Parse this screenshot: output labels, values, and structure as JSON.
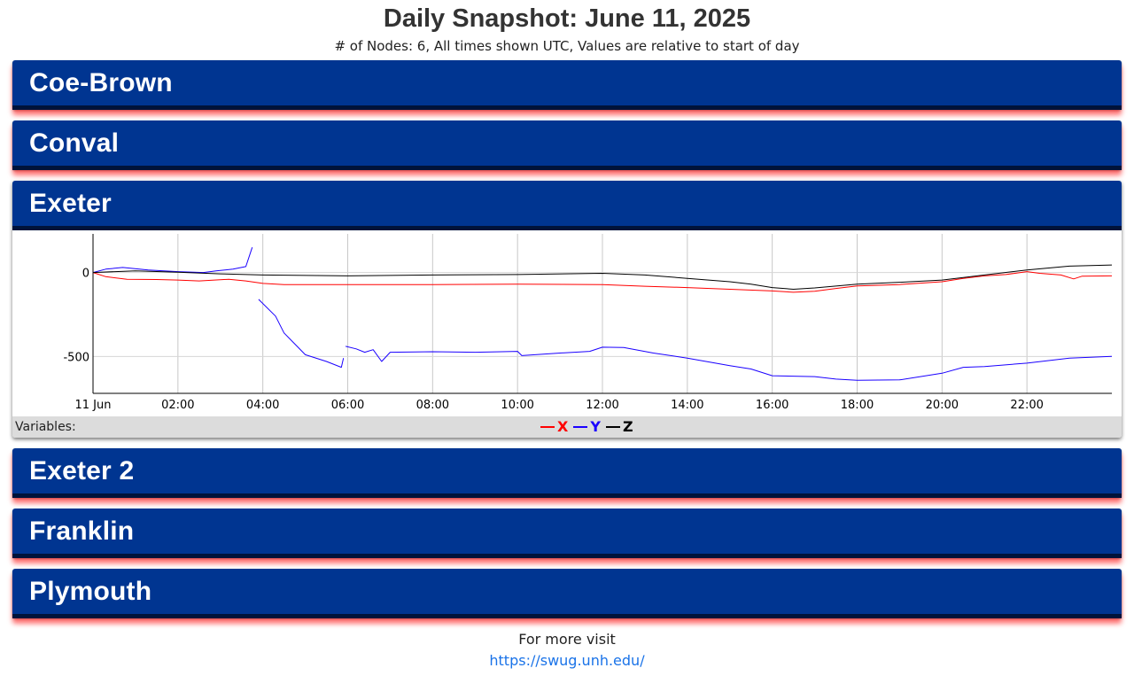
{
  "page": {
    "title": "Daily Snapshot: June 11, 2025",
    "subtitle": "# of Nodes: 6, All times shown UTC, Values are relative to start of day"
  },
  "panels": [
    {
      "label": "Coe-Brown",
      "open": false
    },
    {
      "label": "Conval",
      "open": false
    },
    {
      "label": "Exeter",
      "open": true
    },
    {
      "label": "Exeter 2",
      "open": false
    },
    {
      "label": "Franklin",
      "open": false
    },
    {
      "label": "Plymouth",
      "open": false
    }
  ],
  "variables": {
    "label": "Variables:",
    "items": [
      {
        "name": "X",
        "color": "#ff0000"
      },
      {
        "name": "Y",
        "color": "#1a00ff"
      },
      {
        "name": "Z",
        "color": "#000000"
      }
    ]
  },
  "footer": {
    "text": "For more visit",
    "link_text": "https://swug.unh.edu/"
  },
  "colors": {
    "header_bg": "#003591",
    "header_border": "#00133a",
    "panel_shadow": "#ff0000",
    "link": "#1a73e8"
  },
  "chart_data": {
    "type": "line",
    "x_unit": "hours UTC",
    "xlim": [
      0,
      24
    ],
    "ylim": [
      -720,
      230
    ],
    "x_ticks": [
      {
        "x": 0,
        "label": "11 Jun"
      },
      {
        "x": 2,
        "label": "02:00"
      },
      {
        "x": 4,
        "label": "04:00"
      },
      {
        "x": 6,
        "label": "06:00"
      },
      {
        "x": 8,
        "label": "08:00"
      },
      {
        "x": 10,
        "label": "10:00"
      },
      {
        "x": 12,
        "label": "12:00"
      },
      {
        "x": 14,
        "label": "14:00"
      },
      {
        "x": 16,
        "label": "16:00"
      },
      {
        "x": 18,
        "label": "18:00"
      },
      {
        "x": 20,
        "label": "20:00"
      },
      {
        "x": 22,
        "label": "22:00"
      }
    ],
    "y_ticks": [
      {
        "y": 0,
        "label": "0"
      },
      {
        "y": -500,
        "label": "-500"
      }
    ],
    "grid": true,
    "series": [
      {
        "name": "X",
        "color": "#ff0000",
        "segments": [
          [
            [
              0,
              0
            ],
            [
              0.3,
              -25
            ],
            [
              0.8,
              -40
            ],
            [
              1.5,
              -42
            ],
            [
              2.0,
              -45
            ],
            [
              2.5,
              -50
            ],
            [
              3.2,
              -40
            ],
            [
              3.6,
              -50
            ],
            [
              4.0,
              -65
            ],
            [
              4.5,
              -72
            ],
            [
              6,
              -72
            ],
            [
              8,
              -72
            ],
            [
              10,
              -70
            ],
            [
              12,
              -72
            ],
            [
              13,
              -82
            ],
            [
              14,
              -90
            ],
            [
              15,
              -100
            ],
            [
              16,
              -110
            ],
            [
              16.5,
              -118
            ],
            [
              17.0,
              -112
            ],
            [
              17.5,
              -95
            ],
            [
              18,
              -80
            ],
            [
              19,
              -72
            ],
            [
              20,
              -55
            ],
            [
              20.5,
              -35
            ],
            [
              21,
              -20
            ],
            [
              21.5,
              -12
            ],
            [
              22,
              5
            ],
            [
              22.3,
              -5
            ],
            [
              22.8,
              -15
            ],
            [
              23.1,
              -38
            ],
            [
              23.3,
              -22
            ],
            [
              24,
              -20
            ]
          ]
        ]
      },
      {
        "name": "Y",
        "color": "#1a00ff",
        "segments": [
          [
            [
              0,
              0
            ],
            [
              0.3,
              20
            ],
            [
              0.7,
              30
            ],
            [
              1.3,
              15
            ],
            [
              2.0,
              5
            ],
            [
              2.6,
              0
            ],
            [
              2.9,
              10
            ],
            [
              3.3,
              20
            ],
            [
              3.6,
              35
            ],
            [
              3.75,
              150
            ]
          ],
          [
            [
              3.9,
              -160
            ],
            [
              4.3,
              -260
            ],
            [
              4.5,
              -360
            ],
            [
              5.0,
              -490
            ],
            [
              5.5,
              -530
            ],
            [
              5.85,
              -565
            ],
            [
              5.9,
              -510
            ]
          ],
          [
            [
              5.95,
              -440
            ],
            [
              6.2,
              -455
            ],
            [
              6.4,
              -475
            ],
            [
              6.6,
              -460
            ],
            [
              6.8,
              -530
            ],
            [
              7.0,
              -475
            ],
            [
              8,
              -472
            ],
            [
              9,
              -475
            ],
            [
              10,
              -470
            ],
            [
              10.1,
              -495
            ],
            [
              11,
              -480
            ],
            [
              11.7,
              -470
            ],
            [
              12,
              -445
            ],
            [
              12.5,
              -447
            ],
            [
              13.2,
              -480
            ],
            [
              14,
              -510
            ],
            [
              15,
              -555
            ],
            [
              15.5,
              -575
            ],
            [
              16,
              -615
            ],
            [
              17,
              -620
            ],
            [
              17.5,
              -635
            ],
            [
              18,
              -642
            ],
            [
              19,
              -640
            ],
            [
              20,
              -600
            ],
            [
              20.5,
              -565
            ],
            [
              21,
              -560
            ],
            [
              22,
              -540
            ],
            [
              23,
              -510
            ],
            [
              24,
              -500
            ]
          ]
        ]
      },
      {
        "name": "Z",
        "color": "#000000",
        "segments": [
          [
            [
              0,
              0
            ],
            [
              1,
              10
            ],
            [
              2,
              2
            ],
            [
              3,
              -8
            ],
            [
              4,
              -15
            ],
            [
              6,
              -20
            ],
            [
              8,
              -15
            ],
            [
              10,
              -12
            ],
            [
              12,
              -5
            ],
            [
              13,
              -15
            ],
            [
              14,
              -35
            ],
            [
              15,
              -55
            ],
            [
              15.5,
              -70
            ],
            [
              16,
              -90
            ],
            [
              16.5,
              -100
            ],
            [
              17,
              -92
            ],
            [
              18,
              -70
            ],
            [
              19,
              -58
            ],
            [
              20,
              -45
            ],
            [
              21,
              -15
            ],
            [
              22,
              15
            ],
            [
              23,
              38
            ],
            [
              24,
              45
            ]
          ]
        ]
      }
    ]
  }
}
